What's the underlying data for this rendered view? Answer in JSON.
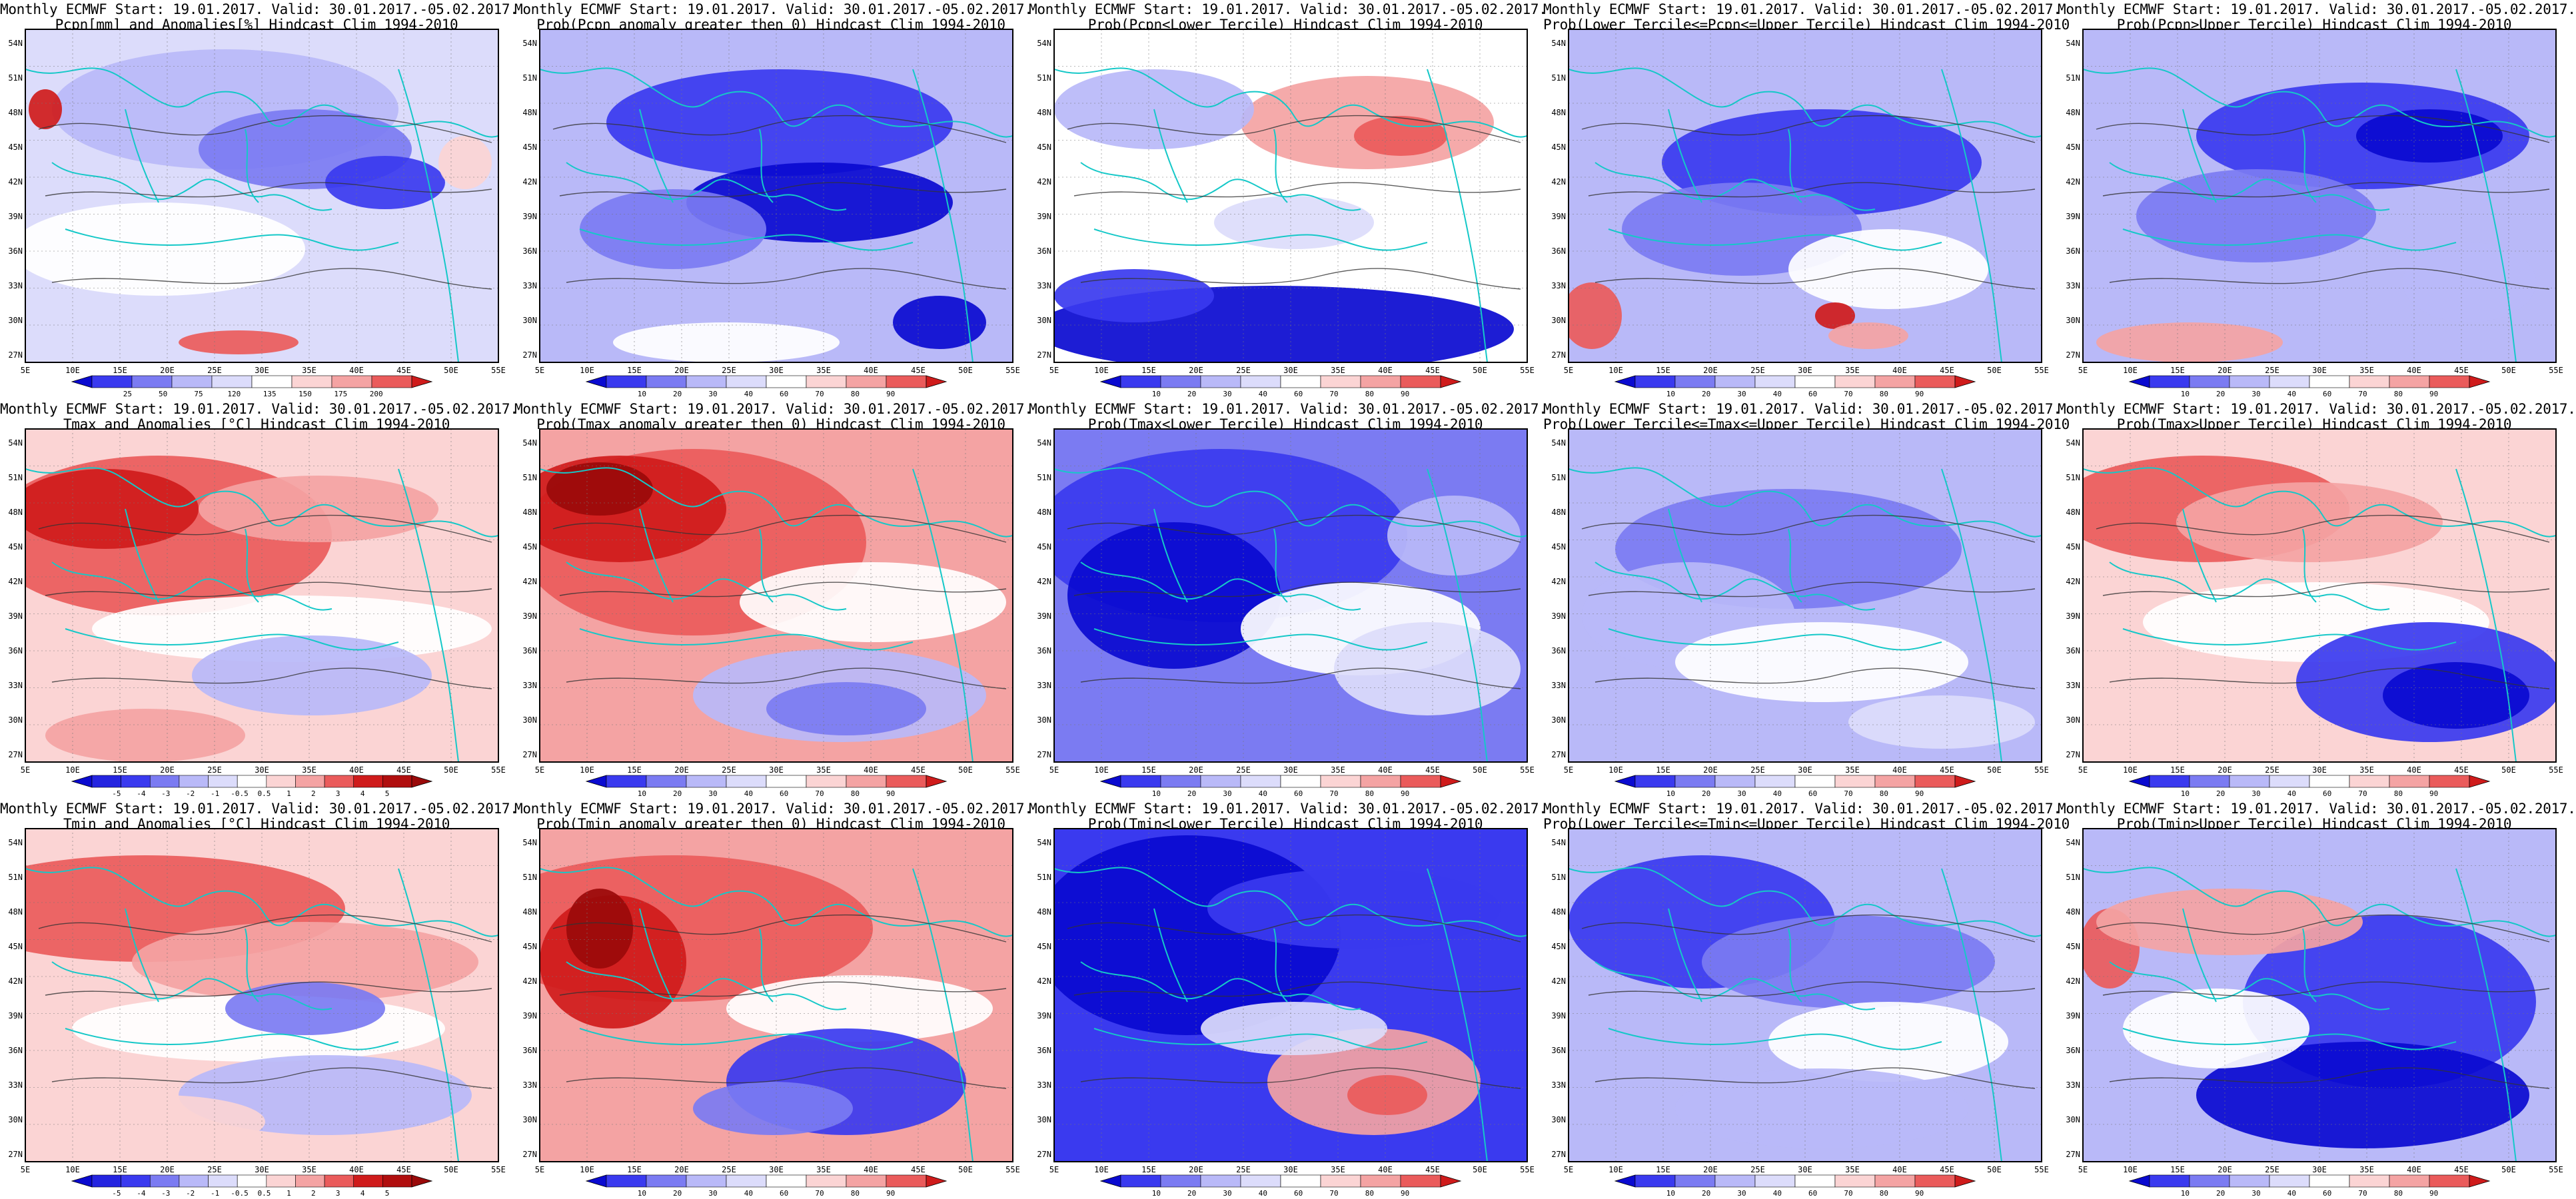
{
  "header_prefix": "Monthly ECMWF Start: 19.01.2017. Valid: 30.01.2017.-05.02.2017.",
  "lat_labels": [
    "54N",
    "51N",
    "48N",
    "45N",
    "42N",
    "39N",
    "36N",
    "33N",
    "30N",
    "27N"
  ],
  "lon_labels": [
    "5E",
    "10E",
    "15E",
    "20E",
    "25E",
    "30E",
    "35E",
    "40E",
    "45E",
    "50E",
    "55E"
  ],
  "colorbars": {
    "pcpn_anom": [
      "25",
      "50",
      "75",
      "120",
      "135",
      "150",
      "175",
      "200"
    ],
    "temp_anom": [
      "-5",
      "-4",
      "-3",
      "-2",
      "-1",
      "-0.5",
      "0.5",
      "1",
      "2",
      "3",
      "4",
      "5"
    ],
    "prob": [
      "10",
      "20",
      "30",
      "40",
      "60",
      "70",
      "80",
      "90"
    ],
    "prob_tercile": [
      "10",
      "20",
      "30",
      "40",
      "60",
      "70",
      "80",
      "90"
    ]
  },
  "colors": {
    "deep_blue": "#0a0ad0",
    "blue": "#3a3aef",
    "mid_blue": "#7b7bf2",
    "light_blue": "#b9b9f8",
    "pale_blue": "#dcdcfb",
    "white": "#ffffff",
    "pale_red": "#fbd4d4",
    "light_red": "#f4a3a3",
    "red": "#ea5b5b",
    "deep_red": "#cf1b1b",
    "dark_red": "#9a0a0a",
    "coast": "#15c8c8",
    "contour": "#333333"
  },
  "panels": [
    {
      "title2": "Pcpn[mm] and Anomalies[%] Hindcast Clim 1994-2010",
      "base": "pale_blue",
      "colorbar": "pcpn_anom"
    },
    {
      "title2": "Prob(Pcpn anomaly greater then 0) Hindcast Clim 1994-2010",
      "base": "light_blue",
      "colorbar": "prob"
    },
    {
      "title2": "Prob(Pcpn<Lower Tercile) Hindcast Clim 1994-2010",
      "base": "white",
      "colorbar": "prob_tercile"
    },
    {
      "title2": "Prob(Lower Tercile<=Pcpn<=Upper Tercile) Hindcast Clim 1994-2010",
      "base": "light_blue",
      "colorbar": "prob_tercile"
    },
    {
      "title2": "Prob(Pcpn>Upper Tercile) Hindcast Clim 1994-2010",
      "base": "light_blue",
      "colorbar": "prob_tercile"
    },
    {
      "title2": "Tmax and Anomalies [°C] Hindcast Clim 1994-2010",
      "base": "pale_red",
      "colorbar": "temp_anom"
    },
    {
      "title2": "Prob(Tmax anomaly greater then 0) Hindcast Clim 1994-2010",
      "base": "light_red",
      "colorbar": "prob"
    },
    {
      "title2": "Prob(Tmax<Lower Tercile) Hindcast Clim 1994-2010",
      "base": "mid_blue",
      "colorbar": "prob_tercile"
    },
    {
      "title2": "Prob(Lower Tercile<=Tmax<=Upper Tercile) Hindcast Clim 1994-2010",
      "base": "light_blue",
      "colorbar": "prob_tercile"
    },
    {
      "title2": "Prob(Tmax>Upper Tercile) Hindcast Clim 1994-2010",
      "base": "pale_red",
      "colorbar": "prob_tercile"
    },
    {
      "title2": "Tmin and Anomalies [°C] Hindcast Clim 1994-2010",
      "base": "pale_red",
      "colorbar": "temp_anom"
    },
    {
      "title2": "Prob(Tmin anomaly greater then 0) Hindcast Clim 1994-2010",
      "base": "light_red",
      "colorbar": "prob"
    },
    {
      "title2": "Prob(Tmin<Lower Tercile) Hindcast Clim 1994-2010",
      "base": "blue",
      "colorbar": "prob_tercile"
    },
    {
      "title2": "Prob(Lower Tercile<=Tmin<=Upper Tercile) Hindcast Clim 1994-2010",
      "base": "light_blue",
      "colorbar": "prob_tercile"
    },
    {
      "title2": "Prob(Tmin>Upper Tercile) Hindcast Clim 1994-2010",
      "base": "light_blue",
      "colorbar": "prob_tercile"
    }
  ]
}
